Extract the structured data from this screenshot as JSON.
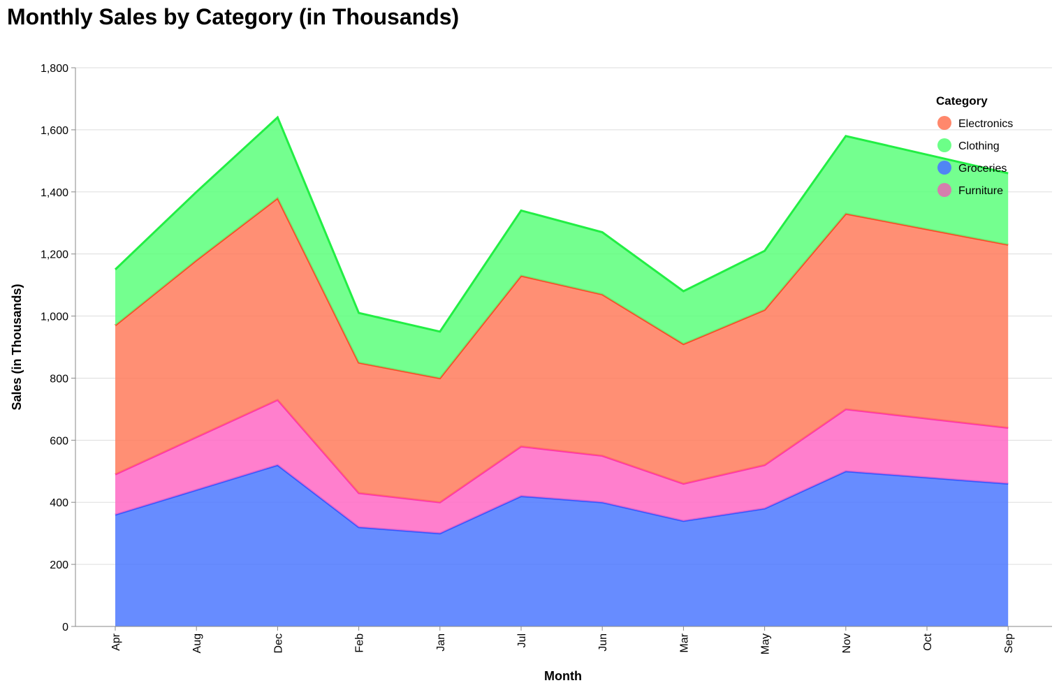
{
  "chart_data": {
    "type": "area",
    "stacked": true,
    "title": "Monthly Sales by Category (in Thousands)",
    "xlabel": "Month",
    "ylabel": "Sales (in Thousands)",
    "ylim": [
      0,
      1800
    ],
    "yticks": [
      0,
      200,
      400,
      600,
      800,
      1000,
      1200,
      1400,
      1600,
      1800
    ],
    "ytick_labels": [
      "0",
      "200",
      "400",
      "600",
      "800",
      "1,000",
      "1,200",
      "1,400",
      "1,600",
      "1,800"
    ],
    "grid": true,
    "categories": [
      "Apr",
      "Aug",
      "Dec",
      "Feb",
      "Jan",
      "Jul",
      "Jun",
      "Mar",
      "May",
      "Nov",
      "Oct",
      "Sep"
    ],
    "series": [
      {
        "name": "Groceries",
        "color": "#4c78ff",
        "stroke": "#3355ff",
        "values": [
          360,
          440,
          520,
          320,
          300,
          420,
          400,
          340,
          380,
          500,
          480,
          460
        ]
      },
      {
        "name": "Furniture",
        "color": "#ff69c4",
        "stroke": "#ff33aa",
        "values": [
          130,
          170,
          210,
          110,
          100,
          160,
          150,
          120,
          140,
          200,
          190,
          180
        ]
      },
      {
        "name": "Electronics",
        "color": "#ff7b5c",
        "stroke": "#ff4422",
        "values": [
          480,
          570,
          650,
          420,
          400,
          550,
          520,
          450,
          500,
          630,
          610,
          590
        ]
      },
      {
        "name": "Clothing",
        "color": "#5cff7b",
        "stroke": "#22ee44",
        "values": [
          180,
          220,
          260,
          160,
          150,
          210,
          200,
          170,
          190,
          250,
          240,
          230
        ]
      }
    ],
    "legend": {
      "title": "Category",
      "position": "top-right",
      "items": [
        {
          "name": "Electronics",
          "color": "#ff7b5c"
        },
        {
          "name": "Clothing",
          "color": "#5cff7b"
        },
        {
          "name": "Groceries",
          "color": "#4c78ff"
        },
        {
          "name": "Furniture",
          "color": "#e070b0"
        }
      ]
    }
  }
}
